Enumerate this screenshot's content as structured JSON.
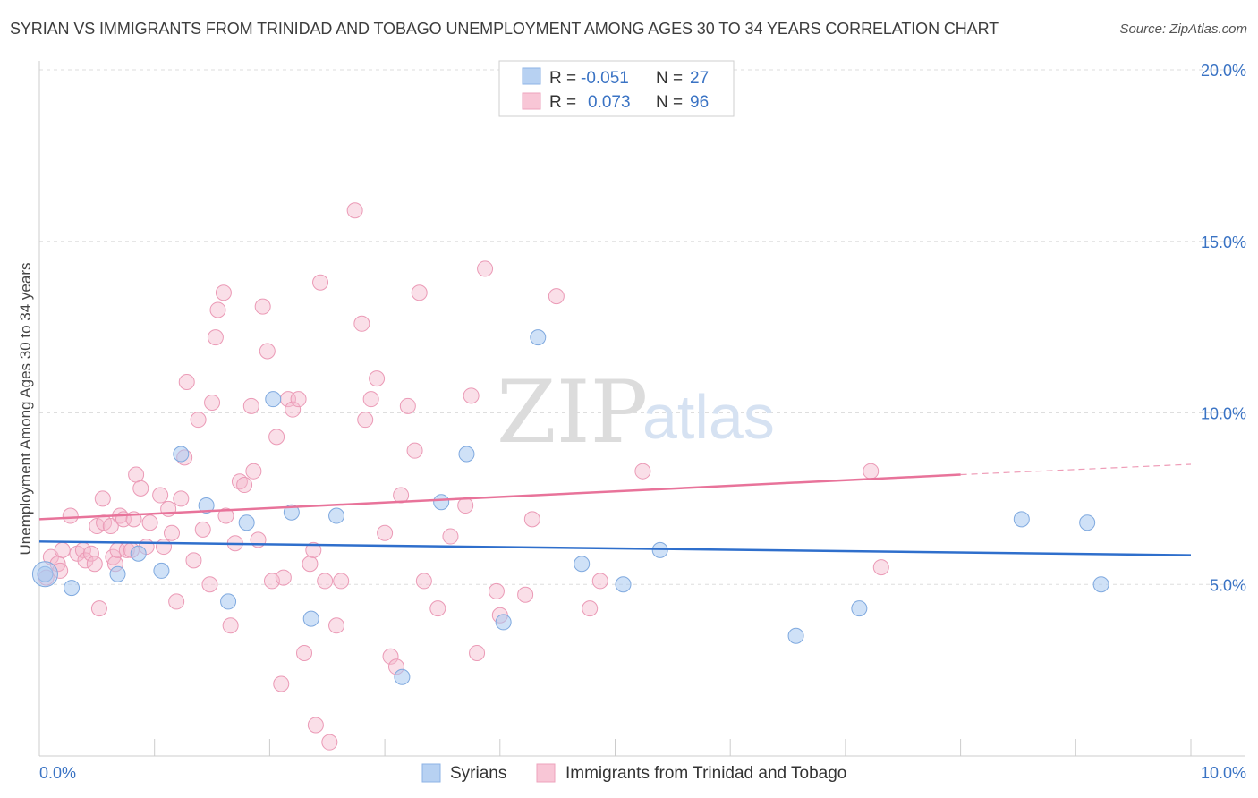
{
  "title": "SYRIAN VS IMMIGRANTS FROM TRINIDAD AND TOBAGO UNEMPLOYMENT AMONG AGES 30 TO 34 YEARS CORRELATION CHART",
  "source": "Source: ZipAtlas.com",
  "watermark": {
    "zip": "ZIP",
    "atlas": "atlas"
  },
  "legend": {
    "rows": [
      {
        "r_label": "R =",
        "r_value": "-0.051",
        "n_label": "N =",
        "n_value": "27"
      },
      {
        "r_label": "R =",
        "r_value": "0.073",
        "n_label": "N =",
        "n_value": "96"
      }
    ]
  },
  "chart_data": {
    "type": "scatter",
    "title": "SYRIAN VS IMMIGRANTS FROM TRINIDAD AND TOBAGO UNEMPLOYMENT AMONG AGES 30 TO 34 YEARS CORRELATION CHART",
    "xlabel": "",
    "ylabel": "Unemployment Among Ages 30 to 34 years",
    "xlim": [
      0,
      10
    ],
    "ylim": [
      0,
      20
    ],
    "x_tick_labels": [
      {
        "value": 0,
        "label": "0.0%"
      },
      {
        "value": 10,
        "label": "10.0%"
      }
    ],
    "y_tick_labels": [
      {
        "value": 5,
        "label": "5.0%"
      },
      {
        "value": 10,
        "label": "10.0%"
      },
      {
        "value": 15,
        "label": "15.0%"
      },
      {
        "value": 20,
        "label": "20.0%"
      }
    ],
    "grid": true,
    "legend_position": "top-center",
    "colors": {
      "Syrians": "#a8c8f0",
      "Immigrants from Trinidad and Tobago": "#f5b8cc",
      "Syrians_line": "#2f6fcc",
      "Immigrants from Trinidad and Tobago_line": "#e8739a"
    },
    "series": [
      {
        "name": "Syrians",
        "r": -0.051,
        "n": 27,
        "trend": {
          "x": [
            0,
            10
          ],
          "y": [
            6.25,
            5.85
          ]
        },
        "points": [
          [
            0.05,
            5.3
          ],
          [
            0.28,
            4.9
          ],
          [
            0.68,
            5.3
          ],
          [
            0.86,
            5.9
          ],
          [
            1.06,
            5.4
          ],
          [
            1.23,
            8.8
          ],
          [
            1.45,
            7.3
          ],
          [
            1.64,
            4.5
          ],
          [
            1.8,
            6.8
          ],
          [
            2.03,
            10.4
          ],
          [
            2.19,
            7.1
          ],
          [
            2.36,
            4.0
          ],
          [
            2.58,
            7.0
          ],
          [
            3.15,
            2.3
          ],
          [
            3.49,
            7.4
          ],
          [
            3.71,
            8.8
          ],
          [
            4.03,
            3.9
          ],
          [
            4.33,
            12.2
          ],
          [
            4.71,
            5.6
          ],
          [
            5.07,
            5.0
          ],
          [
            5.39,
            6.0
          ],
          [
            6.57,
            3.5
          ],
          [
            7.12,
            4.3
          ],
          [
            8.53,
            6.9
          ],
          [
            9.1,
            6.8
          ],
          [
            9.22,
            5.0
          ]
        ]
      },
      {
        "name": "Immigrants from Trinidad and Tobago",
        "r": 0.073,
        "n": 96,
        "trend": {
          "x": [
            0,
            8
          ],
          "y": [
            6.9,
            8.2
          ]
        },
        "trend_dashed": {
          "x": [
            8,
            10
          ],
          "y": [
            8.2,
            8.5
          ]
        },
        "points": [
          [
            0.06,
            5.2
          ],
          [
            0.1,
            5.8
          ],
          [
            0.16,
            5.6
          ],
          [
            0.18,
            5.4
          ],
          [
            0.2,
            6.0
          ],
          [
            0.27,
            7.0
          ],
          [
            0.33,
            5.9
          ],
          [
            0.38,
            6.0
          ],
          [
            0.4,
            5.7
          ],
          [
            0.45,
            5.9
          ],
          [
            0.48,
            5.6
          ],
          [
            0.5,
            6.7
          ],
          [
            0.52,
            4.3
          ],
          [
            0.55,
            7.5
          ],
          [
            0.56,
            6.8
          ],
          [
            0.62,
            6.7
          ],
          [
            0.64,
            5.8
          ],
          [
            0.66,
            5.6
          ],
          [
            0.68,
            6.0
          ],
          [
            0.7,
            7.0
          ],
          [
            0.73,
            6.9
          ],
          [
            0.76,
            6.0
          ],
          [
            0.8,
            6.0
          ],
          [
            0.82,
            6.9
          ],
          [
            0.84,
            8.2
          ],
          [
            0.88,
            7.8
          ],
          [
            0.93,
            6.1
          ],
          [
            0.96,
            6.8
          ],
          [
            1.05,
            7.6
          ],
          [
            1.08,
            6.1
          ],
          [
            1.12,
            7.2
          ],
          [
            1.15,
            6.5
          ],
          [
            1.19,
            4.5
          ],
          [
            1.23,
            7.5
          ],
          [
            1.26,
            8.7
          ],
          [
            1.28,
            10.9
          ],
          [
            1.34,
            5.7
          ],
          [
            1.38,
            9.8
          ],
          [
            1.42,
            6.6
          ],
          [
            1.48,
            5.0
          ],
          [
            1.5,
            10.3
          ],
          [
            1.53,
            12.2
          ],
          [
            1.55,
            13.0
          ],
          [
            1.6,
            13.5
          ],
          [
            1.62,
            7.0
          ],
          [
            1.66,
            3.8
          ],
          [
            1.7,
            6.2
          ],
          [
            1.74,
            8.0
          ],
          [
            1.78,
            7.9
          ],
          [
            1.84,
            10.2
          ],
          [
            1.86,
            8.3
          ],
          [
            1.9,
            6.3
          ],
          [
            1.94,
            13.1
          ],
          [
            1.98,
            11.8
          ],
          [
            2.02,
            5.1
          ],
          [
            2.06,
            9.3
          ],
          [
            2.1,
            2.1
          ],
          [
            2.12,
            5.2
          ],
          [
            2.16,
            10.4
          ],
          [
            2.2,
            10.1
          ],
          [
            2.25,
            10.4
          ],
          [
            2.3,
            3.0
          ],
          [
            2.35,
            5.6
          ],
          [
            2.38,
            6.0
          ],
          [
            2.4,
            0.9
          ],
          [
            2.44,
            13.8
          ],
          [
            2.48,
            5.1
          ],
          [
            2.52,
            0.4
          ],
          [
            2.58,
            3.8
          ],
          [
            2.62,
            5.1
          ],
          [
            2.74,
            15.9
          ],
          [
            2.8,
            12.6
          ],
          [
            2.83,
            9.8
          ],
          [
            2.88,
            10.4
          ],
          [
            2.93,
            11.0
          ],
          [
            3.0,
            6.5
          ],
          [
            3.05,
            2.9
          ],
          [
            3.1,
            2.6
          ],
          [
            3.14,
            7.6
          ],
          [
            3.2,
            10.2
          ],
          [
            3.26,
            8.9
          ],
          [
            3.3,
            13.5
          ],
          [
            3.34,
            5.1
          ],
          [
            3.46,
            4.3
          ],
          [
            3.57,
            6.4
          ],
          [
            3.7,
            7.3
          ],
          [
            3.75,
            10.5
          ],
          [
            3.8,
            3.0
          ],
          [
            3.87,
            14.2
          ],
          [
            3.97,
            4.8
          ],
          [
            4.0,
            4.1
          ],
          [
            4.22,
            4.7
          ],
          [
            4.28,
            6.9
          ],
          [
            4.49,
            13.4
          ],
          [
            4.78,
            4.3
          ],
          [
            4.87,
            5.1
          ],
          [
            5.24,
            8.3
          ],
          [
            7.22,
            8.3
          ],
          [
            7.31,
            5.5
          ]
        ]
      }
    ]
  },
  "bottom_legend": [
    {
      "label": "Syrians"
    },
    {
      "label": "Immigrants from Trinidad and Tobago"
    }
  ]
}
